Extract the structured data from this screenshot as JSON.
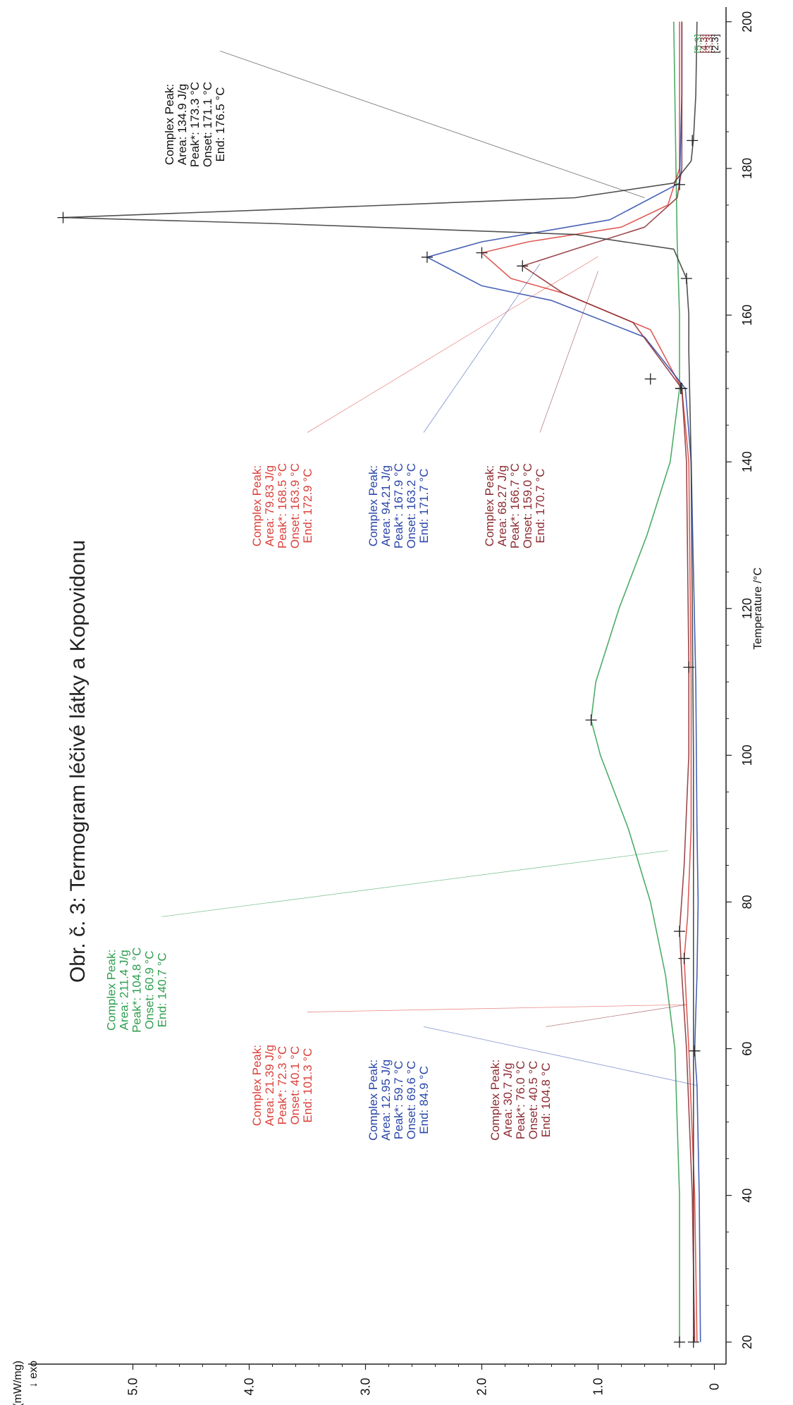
{
  "chart_data": {
    "type": "line",
    "title": "Obr. č. 3: Termogram léčivé látky a Kopovidonu",
    "xlabel": "Temperature /°C",
    "ylabel": "DSC /(mW/mg)",
    "ylabel_note": "↓ exo",
    "xlim": [
      17,
      202
    ],
    "ylim": [
      -0.1,
      5.9
    ],
    "x_ticks": [
      20,
      40,
      60,
      80,
      100,
      120,
      140,
      160,
      180,
      200
    ],
    "y_ticks": [
      0,
      1.0,
      2.0,
      3.0,
      4.0,
      5.0
    ],
    "y_tick_labels": [
      "0",
      "1.0",
      "2.0",
      "3.0",
      "4.0",
      "5.0"
    ],
    "grid": false,
    "orientation": "rotated 90° counter-clockwise",
    "segment_labels": [
      {
        "text": "[5.3]",
        "color": "#2e9e4f"
      },
      {
        "text": "[4.3]",
        "color": "#7a1c24"
      },
      {
        "text": "[3.3]",
        "color": "#7a1c24"
      },
      {
        "text": "[2.3]",
        "color": "#111111"
      }
    ],
    "series": [
      {
        "color": "#2e9e4f",
        "x": [
          20,
          40,
          60,
          70,
          80,
          90,
          100,
          104.8,
          110,
          120,
          130,
          140,
          150,
          160,
          170,
          180,
          190,
          200
        ],
        "y": [
          0.3,
          0.3,
          0.34,
          0.42,
          0.55,
          0.74,
          0.98,
          1.06,
          1.02,
          0.82,
          0.58,
          0.38,
          0.3,
          0.3,
          0.32,
          0.33,
          0.34,
          0.35
        ]
      },
      {
        "color": "#d9403a",
        "x": [
          20,
          40,
          60,
          66,
          72.3,
          78,
          90,
          110,
          140,
          150,
          158,
          163,
          165,
          168.5,
          170,
          172,
          175,
          180,
          190,
          200
        ],
        "y": [
          0.15,
          0.17,
          0.22,
          0.24,
          0.26,
          0.23,
          0.2,
          0.2,
          0.22,
          0.28,
          0.55,
          1.3,
          1.75,
          2.0,
          1.6,
          0.8,
          0.4,
          0.3,
          0.3,
          0.3
        ]
      },
      {
        "color": "#2845a8",
        "x": [
          20,
          40,
          55,
          59.7,
          65,
          70,
          80,
          90,
          110,
          140,
          150,
          157,
          162,
          164,
          167.9,
          170,
          173,
          178,
          190,
          200
        ],
        "y": [
          0.12,
          0.13,
          0.15,
          0.17,
          0.16,
          0.15,
          0.14,
          0.15,
          0.16,
          0.2,
          0.25,
          0.6,
          1.4,
          2.0,
          2.47,
          2.0,
          0.9,
          0.3,
          0.28,
          0.28
        ]
      },
      {
        "color": "#8b2a30",
        "x": [
          20,
          40,
          60,
          70,
          76,
          85,
          100,
          112,
          140,
          150,
          159,
          163,
          166.7,
          169,
          172,
          176,
          180,
          190,
          200
        ],
        "y": [
          0.17,
          0.19,
          0.24,
          0.28,
          0.3,
          0.26,
          0.22,
          0.22,
          0.24,
          0.28,
          0.7,
          1.3,
          1.65,
          1.2,
          0.6,
          0.32,
          0.28,
          0.28,
          0.28
        ]
      },
      {
        "color": "#333333",
        "x": [
          20,
          40,
          60,
          100,
          140,
          155,
          160,
          165,
          169,
          171,
          172.5,
          173.3,
          174.5,
          176,
          178,
          181,
          184,
          190,
          200
        ],
        "y": [
          0.18,
          0.18,
          0.18,
          0.18,
          0.2,
          0.22,
          0.22,
          0.24,
          0.35,
          1.2,
          3.8,
          5.6,
          3.6,
          1.2,
          0.35,
          0.2,
          0.18,
          0.16,
          0.15
        ]
      }
    ],
    "peak_markers": [
      {
        "x": 104.8,
        "y": 1.06,
        "color": "#2e9e4f"
      },
      {
        "x": 151.3,
        "y": 0.55,
        "color": "#2e9e4f"
      },
      {
        "x": 72.3,
        "y": 0.26,
        "color": "#d9403a"
      },
      {
        "x": 168.5,
        "y": 2.0,
        "color": "#d9403a"
      },
      {
        "x": 150.0,
        "y": 0.28,
        "color": "#d9403a"
      },
      {
        "x": 59.7,
        "y": 0.17,
        "color": "#2845a8"
      },
      {
        "x": 167.9,
        "y": 2.47,
        "color": "#2845a8"
      },
      {
        "x": 76.0,
        "y": 0.3,
        "color": "#8b2a30"
      },
      {
        "x": 166.7,
        "y": 1.65,
        "color": "#8b2a30"
      },
      {
        "x": 173.3,
        "y": 5.6,
        "color": "#333333"
      },
      {
        "x": 112.0,
        "y": 0.22,
        "color": "#333333"
      },
      {
        "x": 165.0,
        "y": 0.24,
        "color": "#333333"
      },
      {
        "x": 177.8,
        "y": 0.3,
        "color": "#333333"
      },
      {
        "x": 183.8,
        "y": 0.19,
        "color": "#333333"
      },
      {
        "x": 20.0,
        "y": 0.18,
        "color": "#333333"
      },
      {
        "x": 20.0,
        "y": 0.3,
        "color": "#2e9e4f"
      },
      {
        "x": 150.0,
        "y": 0.29,
        "color": "#333333"
      }
    ],
    "annotations": [
      {
        "color": "#2e9e4f",
        "lines": [
          "Complex Peak:",
          "Area:   211.4 J/g",
          "Peak*:  104.8 °C",
          "Onset:  60.9 °C",
          "End:    140.7 °C"
        ],
        "x_center": 68,
        "y_top": 5.15,
        "leader_x": 87,
        "leader_y": 0.4
      },
      {
        "color": "#d9403a",
        "lines": [
          "Complex Peak:",
          "Area:    21.39 J/g",
          "Peak*:  72.3 °C",
          "Onset:  40.1 °C",
          "End:    101.3 °C"
        ],
        "x_center": 55,
        "y_top": 3.9,
        "leader_x": 66,
        "leader_y": 0.24
      },
      {
        "color": "#2845a8",
        "lines": [
          "Complex Peak:",
          "Area:   12.95 J/g",
          "Peak*:  59.7 °C",
          "Onset:  69.6 °C",
          "End:    84.9 °C"
        ],
        "x_center": 53,
        "y_top": 2.9,
        "leader_x": 55,
        "leader_y": 0.15
      },
      {
        "color": "#8b2a30",
        "lines": [
          "Complex Peak:",
          "Area:    30.7 J/g",
          "Peak*:  76.0 °C",
          "Onset:  40.5 °C",
          "End:    104.8 °C"
        ],
        "x_center": 53,
        "y_top": 1.85,
        "leader_x": 66,
        "leader_y": 0.24
      },
      {
        "color": "#d9403a",
        "lines": [
          "Complex Peak:",
          "Area:    79.83 J/g",
          "Peak*:  168.5 °C",
          "Onset:  163.9 °C",
          "End:    172.9 °C"
        ],
        "x_center": 134,
        "y_top": 3.9,
        "leader_x": 168,
        "leader_y": 1.0
      },
      {
        "color": "#2845a8",
        "lines": [
          "Complex Peak:",
          "Area:    94.21 J/g",
          "Peak*:  167.9 °C",
          "Onset:  163.2 °C",
          "End:    171.7 °C"
        ],
        "x_center": 134,
        "y_top": 2.9,
        "leader_x": 167,
        "leader_y": 1.5
      },
      {
        "color": "#8b2a30",
        "lines": [
          "Complex Peak:",
          "Area:    68.27 J/g",
          "Peak*:  166.7 °C",
          "Onset:  159.0 °C",
          "End:    170.7 °C"
        ],
        "x_center": 134,
        "y_top": 1.9,
        "leader_x": 166,
        "leader_y": 1.0
      },
      {
        "color": "#111111",
        "lines": [
          "Complex Peak:",
          "Area:    134.9 J/g",
          "Peak*:  173.3 °C",
          "Onset:  171.1 °C",
          "End:    176.5 °C"
        ],
        "x_center": 186,
        "y_top": 4.65,
        "leader_x": 176,
        "leader_y": 0.6
      }
    ]
  }
}
